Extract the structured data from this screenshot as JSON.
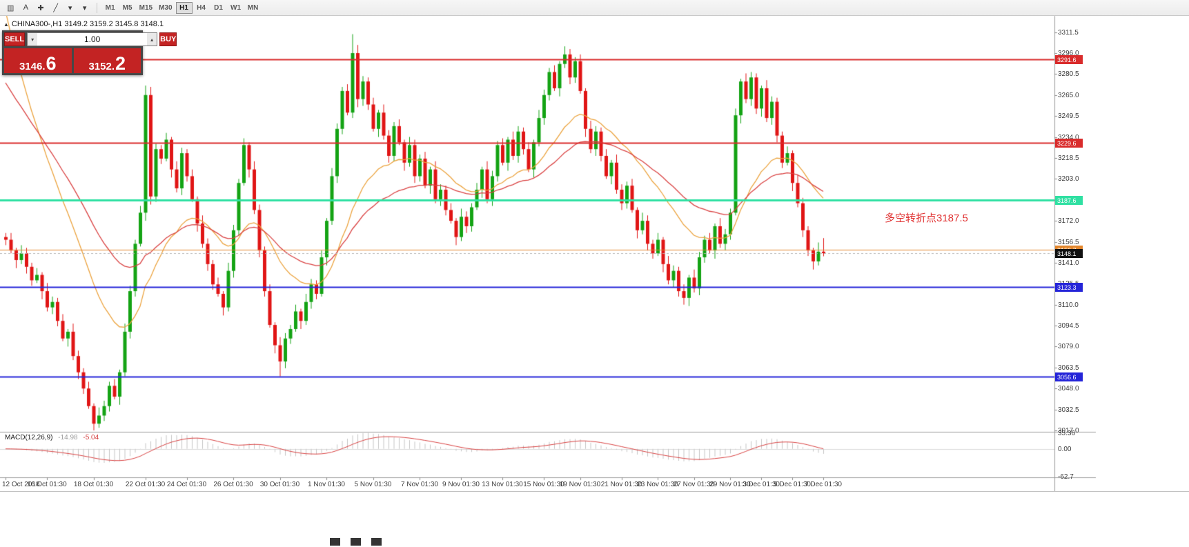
{
  "toolbar": {
    "tools": [
      {
        "name": "charts-icon",
        "glyph": "▥"
      },
      {
        "name": "text-cursor-icon",
        "glyph": "A"
      },
      {
        "name": "crosshair-icon",
        "glyph": "✚"
      },
      {
        "name": "trendline-icon",
        "glyph": "╱"
      },
      {
        "name": "objects-dropdown-icon",
        "glyph": "▾"
      },
      {
        "name": "indicators-dropdown-icon",
        "glyph": "▾"
      }
    ],
    "timeframes": [
      {
        "label": "M1",
        "active": false
      },
      {
        "label": "M5",
        "active": false
      },
      {
        "label": "M15",
        "active": false
      },
      {
        "label": "M30",
        "active": false
      },
      {
        "label": "H1",
        "active": true
      },
      {
        "label": "H4",
        "active": false
      },
      {
        "label": "D1",
        "active": false
      },
      {
        "label": "W1",
        "active": false
      },
      {
        "label": "MN",
        "active": false
      }
    ]
  },
  "chart_header": {
    "collapse_icon": "▲",
    "text": "CHINA300-,H1 3149.2 3159.2 3145.8 3148.1"
  },
  "trade_panel": {
    "sell_label": "SELL",
    "buy_label": "BUY",
    "volume": "1.00",
    "volume_down_icon": "▾",
    "volume_up_icon": "▴",
    "sell_price_main": "3146.",
    "sell_price_big": "6",
    "buy_price_main": "3152.",
    "buy_price_big": "2"
  },
  "annotation": {
    "text": "多空转折点3187.5",
    "color": "#e03030"
  },
  "hlines": [
    {
      "price": 3291.6,
      "label": "3291.6",
      "color": "#d92b2b",
      "width": 2
    },
    {
      "price": 3229.6,
      "label": "3229.6",
      "color": "#d92b2b",
      "width": 2
    },
    {
      "price": 3187.6,
      "label": "3187.6",
      "color": "#2fe0a2",
      "width": 3
    },
    {
      "price": 3150.7,
      "label": "3150.7",
      "color": "#e2862d",
      "width": 1
    },
    {
      "price": 3123.3,
      "label": "3123.3",
      "color": "#2424d8",
      "width": 2
    },
    {
      "price": 3056.6,
      "label": "3056.6",
      "color": "#2424d8",
      "width": 2
    }
  ],
  "current_price": {
    "value": 3148.1,
    "label": "3148.1",
    "tag_color": "#111111"
  },
  "macd_panel": {
    "title": "MACD(12,26,9)",
    "macd_value": "-14.98",
    "signal_value": "-5.04",
    "axis": [
      "35.36",
      "0.00",
      "-62.7"
    ]
  },
  "time_axis": [
    {
      "label": "12 Oct 2018",
      "i": 0
    },
    {
      "label": "16 Oct 01:30",
      "i": 8
    },
    {
      "label": "18 Oct 01:30",
      "i": 17
    },
    {
      "label": "22 Oct 01:30",
      "i": 27
    },
    {
      "label": "24 Oct 01:30",
      "i": 35
    },
    {
      "label": "26 Oct 01:30",
      "i": 44
    },
    {
      "label": "30 Oct 01:30",
      "i": 53
    },
    {
      "label": "1 Nov 01:30",
      "i": 62
    },
    {
      "label": "5 Nov 01:30",
      "i": 71
    },
    {
      "label": "7 Nov 01:30",
      "i": 80
    },
    {
      "label": "9 Nov 01:30",
      "i": 88
    },
    {
      "label": "13 Nov 01:30",
      "i": 96
    },
    {
      "label": "15 Nov 01:30",
      "i": 104
    },
    {
      "label": "19 Nov 01:30",
      "i": 111
    },
    {
      "label": "21 Nov 01:30",
      "i": 119
    },
    {
      "label": "23 Nov 01:30",
      "i": 126
    },
    {
      "label": "27 Nov 01:30",
      "i": 133
    },
    {
      "label": "29 Nov 01:30",
      "i": 140
    },
    {
      "label": "3 Dec 01:30",
      "i": 146
    },
    {
      "label": "5 Dec 01:30",
      "i": 152
    },
    {
      "label": "7 Dec 01:30",
      "i": 158
    }
  ],
  "chart_data": {
    "type": "candlestick",
    "symbol": "CHINA300-",
    "timeframe": "H1",
    "last_bar": {
      "open": 3149.2,
      "high": 3159.2,
      "low": 3145.8,
      "close": 3148.1
    },
    "price_range": [
      3016,
      3322
    ],
    "price_ticks": [
      "3311.5",
      "3296.0",
      "3280.5",
      "3265.0",
      "3249.5",
      "3234.0",
      "3218.5",
      "3203.0",
      "3187.5",
      "3172.0",
      "3156.5",
      "3141.0",
      "3125.5",
      "3110.0",
      "3094.5",
      "3079.0",
      "3063.5",
      "3048.0",
      "3032.5",
      "3017.0"
    ],
    "colors": {
      "up": "#14a314",
      "down": "#e01515"
    },
    "moving_averages": [
      {
        "name": "ma-fast-orange",
        "color": "#eba23c",
        "period": 20,
        "seed": 3345
      },
      {
        "name": "ma-slow-red",
        "color": "#d94040",
        "period": 40,
        "seed": 3280
      }
    ],
    "macd": {
      "fast": 12,
      "slow": 26,
      "signal": 9,
      "range": [
        -62.7,
        35.36
      ],
      "current_macd": -14.98,
      "current_signal": -5.04
    },
    "ohlc": [
      [
        3160,
        3163,
        3154,
        3158
      ],
      [
        3158,
        3163,
        3148,
        3150
      ],
      [
        3150,
        3152,
        3137,
        3143
      ],
      [
        3143,
        3154,
        3140,
        3148
      ],
      [
        3148,
        3152,
        3133,
        3138
      ],
      [
        3138,
        3141,
        3124,
        3128
      ],
      [
        3128,
        3137,
        3126,
        3132
      ],
      [
        3132,
        3134,
        3114,
        3120
      ],
      [
        3120,
        3126,
        3105,
        3108
      ],
      [
        3108,
        3116,
        3103,
        3112
      ],
      [
        3112,
        3115,
        3094,
        3098
      ],
      [
        3098,
        3103,
        3083,
        3085
      ],
      [
        3085,
        3092,
        3079,
        3090
      ],
      [
        3090,
        3096,
        3069,
        3072
      ],
      [
        3072,
        3076,
        3055,
        3060
      ],
      [
        3060,
        3063,
        3044,
        3048
      ],
      [
        3048,
        3053,
        3033,
        3035
      ],
      [
        3035,
        3037,
        3017,
        3022
      ],
      [
        3022,
        3034,
        3019,
        3028
      ],
      [
        3028,
        3039,
        3024,
        3035
      ],
      [
        3035,
        3053,
        3031,
        3050
      ],
      [
        3050,
        3055,
        3040,
        3042
      ],
      [
        3042,
        3062,
        3036,
        3060
      ],
      [
        3060,
        3096,
        3057,
        3090
      ],
      [
        3090,
        3124,
        3085,
        3120
      ],
      [
        3120,
        3158,
        3116,
        3155
      ],
      [
        3155,
        3183,
        3153,
        3178
      ],
      [
        3178,
        3272,
        3172,
        3265
      ],
      [
        3265,
        3271,
        3184,
        3190
      ],
      [
        3190,
        3229,
        3186,
        3225
      ],
      [
        3225,
        3228,
        3214,
        3218
      ],
      [
        3218,
        3237,
        3216,
        3232
      ],
      [
        3232,
        3234,
        3204,
        3210
      ],
      [
        3210,
        3216,
        3193,
        3196
      ],
      [
        3196,
        3226,
        3191,
        3222
      ],
      [
        3222,
        3225,
        3201,
        3205
      ],
      [
        3205,
        3210,
        3186,
        3188
      ],
      [
        3188,
        3190,
        3164,
        3170
      ],
      [
        3170,
        3176,
        3152,
        3155
      ],
      [
        3155,
        3159,
        3135,
        3140
      ],
      [
        3140,
        3143,
        3121,
        3125
      ],
      [
        3125,
        3130,
        3116,
        3118
      ],
      [
        3118,
        3120,
        3102,
        3108
      ],
      [
        3108,
        3141,
        3105,
        3135
      ],
      [
        3135,
        3169,
        3130,
        3165
      ],
      [
        3165,
        3203,
        3161,
        3200
      ],
      [
        3200,
        3233,
        3198,
        3228
      ],
      [
        3228,
        3230,
        3204,
        3210
      ],
      [
        3210,
        3216,
        3177,
        3180
      ],
      [
        3180,
        3184,
        3145,
        3150
      ],
      [
        3150,
        3153,
        3116,
        3120
      ],
      [
        3120,
        3125,
        3093,
        3095
      ],
      [
        3095,
        3097,
        3074,
        3080
      ],
      [
        3080,
        3086,
        3057,
        3068
      ],
      [
        3068,
        3089,
        3063,
        3085
      ],
      [
        3085,
        3095,
        3081,
        3092
      ],
      [
        3092,
        3110,
        3090,
        3105
      ],
      [
        3105,
        3107,
        3092,
        3098
      ],
      [
        3098,
        3118,
        3095,
        3112
      ],
      [
        3112,
        3129,
        3107,
        3125
      ],
      [
        3125,
        3128,
        3114,
        3118
      ],
      [
        3118,
        3150,
        3116,
        3145
      ],
      [
        3145,
        3174,
        3139,
        3172
      ],
      [
        3172,
        3211,
        3169,
        3205
      ],
      [
        3205,
        3244,
        3200,
        3240
      ],
      [
        3240,
        3271,
        3236,
        3268
      ],
      [
        3268,
        3273,
        3250,
        3252
      ],
      [
        3252,
        3310,
        3248,
        3296
      ],
      [
        3296,
        3302,
        3256,
        3262
      ],
      [
        3262,
        3279,
        3257,
        3275
      ],
      [
        3275,
        3278,
        3254,
        3258
      ],
      [
        3258,
        3263,
        3238,
        3240
      ],
      [
        3240,
        3254,
        3234,
        3252
      ],
      [
        3252,
        3258,
        3232,
        3235
      ],
      [
        3235,
        3239,
        3215,
        3220
      ],
      [
        3220,
        3245,
        3216,
        3242
      ],
      [
        3242,
        3247,
        3228,
        3230
      ],
      [
        3230,
        3232,
        3209,
        3215
      ],
      [
        3215,
        3234,
        3212,
        3228
      ],
      [
        3228,
        3232,
        3200,
        3205
      ],
      [
        3205,
        3221,
        3201,
        3218
      ],
      [
        3218,
        3223,
        3196,
        3198
      ],
      [
        3198,
        3212,
        3192,
        3210
      ],
      [
        3210,
        3216,
        3185,
        3188
      ],
      [
        3188,
        3199,
        3183,
        3195
      ],
      [
        3195,
        3198,
        3176,
        3180
      ],
      [
        3180,
        3185,
        3170,
        3172
      ],
      [
        3172,
        3174,
        3154,
        3160
      ],
      [
        3160,
        3181,
        3157,
        3175
      ],
      [
        3175,
        3179,
        3163,
        3168
      ],
      [
        3168,
        3185,
        3164,
        3182
      ],
      [
        3182,
        3200,
        3180,
        3195
      ],
      [
        3195,
        3212,
        3189,
        3210
      ],
      [
        3210,
        3216,
        3185,
        3188
      ],
      [
        3188,
        3209,
        3183,
        3205
      ],
      [
        3205,
        3231,
        3201,
        3228
      ],
      [
        3228,
        3233,
        3213,
        3215
      ],
      [
        3215,
        3234,
        3209,
        3232
      ],
      [
        3232,
        3238,
        3217,
        3220
      ],
      [
        3220,
        3242,
        3215,
        3238
      ],
      [
        3238,
        3241,
        3221,
        3225
      ],
      [
        3225,
        3230,
        3208,
        3210
      ],
      [
        3210,
        3232,
        3204,
        3230
      ],
      [
        3230,
        3254,
        3227,
        3248
      ],
      [
        3248,
        3269,
        3243,
        3265
      ],
      [
        3265,
        3285,
        3261,
        3282
      ],
      [
        3282,
        3287,
        3268,
        3270
      ],
      [
        3270,
        3290,
        3264,
        3288
      ],
      [
        3288,
        3301,
        3285,
        3295
      ],
      [
        3295,
        3299,
        3273,
        3278
      ],
      [
        3278,
        3293,
        3274,
        3290
      ],
      [
        3290,
        3295,
        3266,
        3268
      ],
      [
        3268,
        3270,
        3234,
        3240
      ],
      [
        3240,
        3246,
        3222,
        3225
      ],
      [
        3225,
        3242,
        3220,
        3238
      ],
      [
        3238,
        3241,
        3216,
        3220
      ],
      [
        3220,
        3225,
        3203,
        3205
      ],
      [
        3205,
        3217,
        3199,
        3215
      ],
      [
        3215,
        3221,
        3192,
        3195
      ],
      [
        3195,
        3199,
        3180,
        3185
      ],
      [
        3185,
        3201,
        3181,
        3198
      ],
      [
        3198,
        3203,
        3178,
        3180
      ],
      [
        3180,
        3182,
        3159,
        3165
      ],
      [
        3165,
        3178,
        3162,
        3172
      ],
      [
        3172,
        3176,
        3150,
        3155
      ],
      [
        3155,
        3158,
        3144,
        3148
      ],
      [
        3148,
        3163,
        3146,
        3158
      ],
      [
        3158,
        3160,
        3134,
        3140
      ],
      [
        3140,
        3146,
        3125,
        3128
      ],
      [
        3128,
        3139,
        3123,
        3135
      ],
      [
        3135,
        3138,
        3116,
        3120
      ],
      [
        3120,
        3125,
        3110,
        3115
      ],
      [
        3115,
        3132,
        3109,
        3130
      ],
      [
        3130,
        3136,
        3119,
        3122
      ],
      [
        3122,
        3149,
        3117,
        3145
      ],
      [
        3145,
        3161,
        3141,
        3158
      ],
      [
        3158,
        3163,
        3148,
        3150
      ],
      [
        3150,
        3170,
        3144,
        3168
      ],
      [
        3168,
        3174,
        3152,
        3155
      ],
      [
        3155,
        3166,
        3150,
        3162
      ],
      [
        3162,
        3181,
        3158,
        3178
      ],
      [
        3178,
        3255,
        3176,
        3250
      ],
      [
        3250,
        3277,
        3244,
        3275
      ],
      [
        3275,
        3281,
        3259,
        3262
      ],
      [
        3262,
        3282,
        3257,
        3278
      ],
      [
        3278,
        3281,
        3251,
        3255
      ],
      [
        3255,
        3272,
        3249,
        3270
      ],
      [
        3270,
        3276,
        3245,
        3248
      ],
      [
        3248,
        3264,
        3243,
        3260
      ],
      [
        3260,
        3263,
        3230,
        3235
      ],
      [
        3235,
        3238,
        3211,
        3215
      ],
      [
        3215,
        3227,
        3213,
        3222
      ],
      [
        3222,
        3224,
        3194,
        3200
      ],
      [
        3200,
        3206,
        3182,
        3185
      ],
      [
        3185,
        3189,
        3160,
        3165
      ],
      [
        3165,
        3168,
        3146,
        3150
      ],
      [
        3150,
        3152,
        3136,
        3142
      ],
      [
        3142,
        3156,
        3139,
        3149.2
      ],
      [
        3149.2,
        3159.2,
        3145.8,
        3148.1
      ]
    ]
  },
  "bottom_tabs": [
    {
      "name": "taskbar-icon-1"
    },
    {
      "name": "taskbar-icon-2"
    },
    {
      "name": "taskbar-icon-3"
    }
  ]
}
